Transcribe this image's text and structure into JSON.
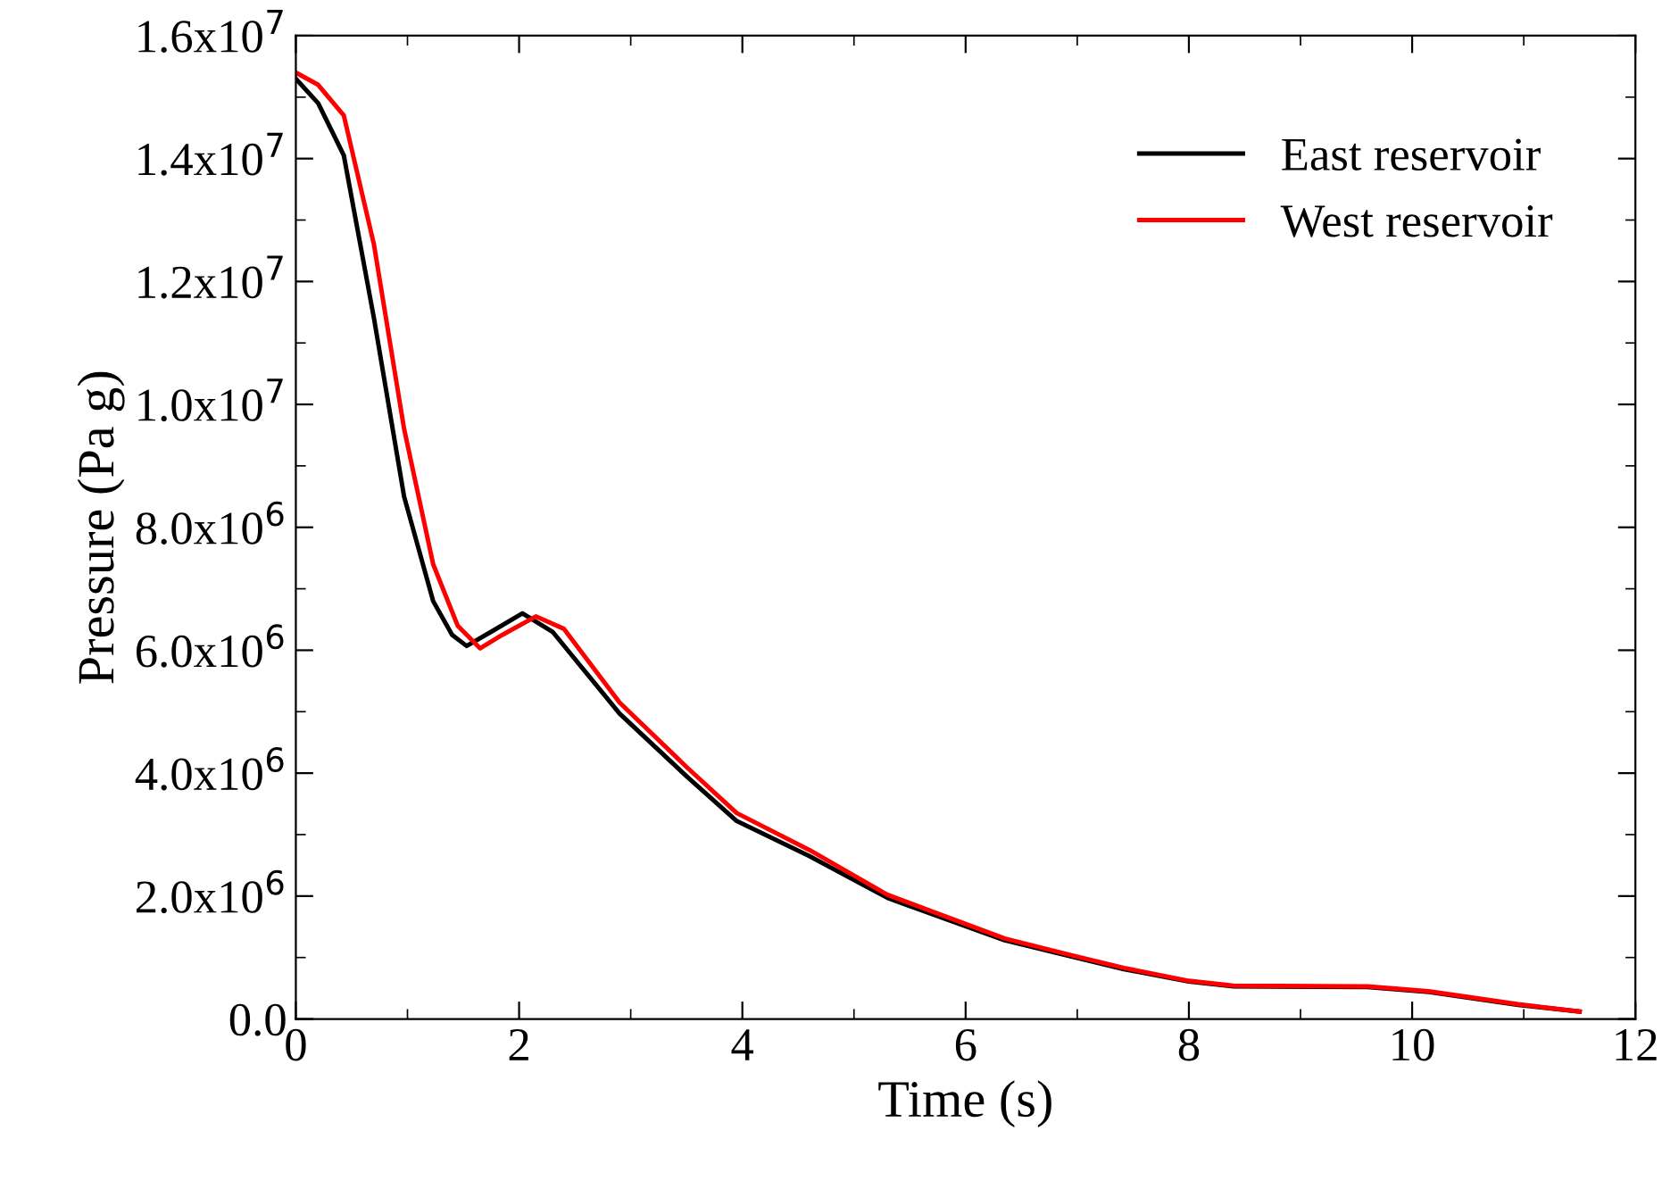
{
  "chart_data": {
    "type": "line",
    "xlabel": "Time (s)",
    "ylabel": "Pressure (Pa g)",
    "xlim": [
      0,
      12
    ],
    "xticks": [
      0,
      2,
      4,
      6,
      8,
      10,
      12
    ],
    "ylim": [
      0,
      16000000
    ],
    "yticks": [
      {
        "value": 0,
        "label": "0.0"
      },
      {
        "value": 2000000,
        "label": "2.0x10$^{6}$"
      },
      {
        "value": 4000000,
        "label": "4.0x10$^{6}$"
      },
      {
        "value": 6000000,
        "label": "6.0x10$^{6}$"
      },
      {
        "value": 8000000,
        "label": "8.0x10$^{6}$"
      },
      {
        "value": 10000000,
        "label": "1.0x10$^{7}$"
      },
      {
        "value": 12000000,
        "label": "1.2x10$^{7}$"
      },
      {
        "value": 14000000,
        "label": "1.4x10$^{7}$"
      },
      {
        "value": 16000000,
        "label": "1.6x10$^{7}$"
      }
    ],
    "legend": "top right",
    "grid": false,
    "marker": "none",
    "line_style": "solid",
    "series": [
      {
        "name": "East reservoir",
        "color": "#000000",
        "x": [
          0,
          0.2,
          0.43,
          0.7,
          0.97,
          1.23,
          1.4,
          1.53,
          1.75,
          2.03,
          2.3,
          2.9,
          3.5,
          3.95,
          4.6,
          5.3,
          6.35,
          6.94,
          7.42,
          8.0,
          8.4,
          9.6,
          10.15,
          10.95,
          11.5
        ],
        "values": [
          15300000,
          14900000,
          14050000,
          11400000,
          8500000,
          6800000,
          6250000,
          6070000,
          6300000,
          6600000,
          6300000,
          4970000,
          3950000,
          3220000,
          2650000,
          1970000,
          1280000,
          1020000,
          810000,
          610000,
          530000,
          520000,
          440000,
          230000,
          120000
        ]
      },
      {
        "name": "West reservoir",
        "color": "#ff0000",
        "x": [
          0,
          0.2,
          0.43,
          0.7,
          0.97,
          1.23,
          1.45,
          1.65,
          1.85,
          2.15,
          2.4,
          2.9,
          3.5,
          3.95,
          4.6,
          5.3,
          6.35,
          6.94,
          7.42,
          8.0,
          8.4,
          9.6,
          10.15,
          10.95,
          11.5
        ],
        "values": [
          15400000,
          15200000,
          14700000,
          12600000,
          9600000,
          7400000,
          6400000,
          6030000,
          6250000,
          6550000,
          6350000,
          5150000,
          4100000,
          3350000,
          2750000,
          2020000,
          1310000,
          1040000,
          830000,
          620000,
          540000,
          530000,
          450000,
          240000,
          120000
        ]
      }
    ]
  }
}
